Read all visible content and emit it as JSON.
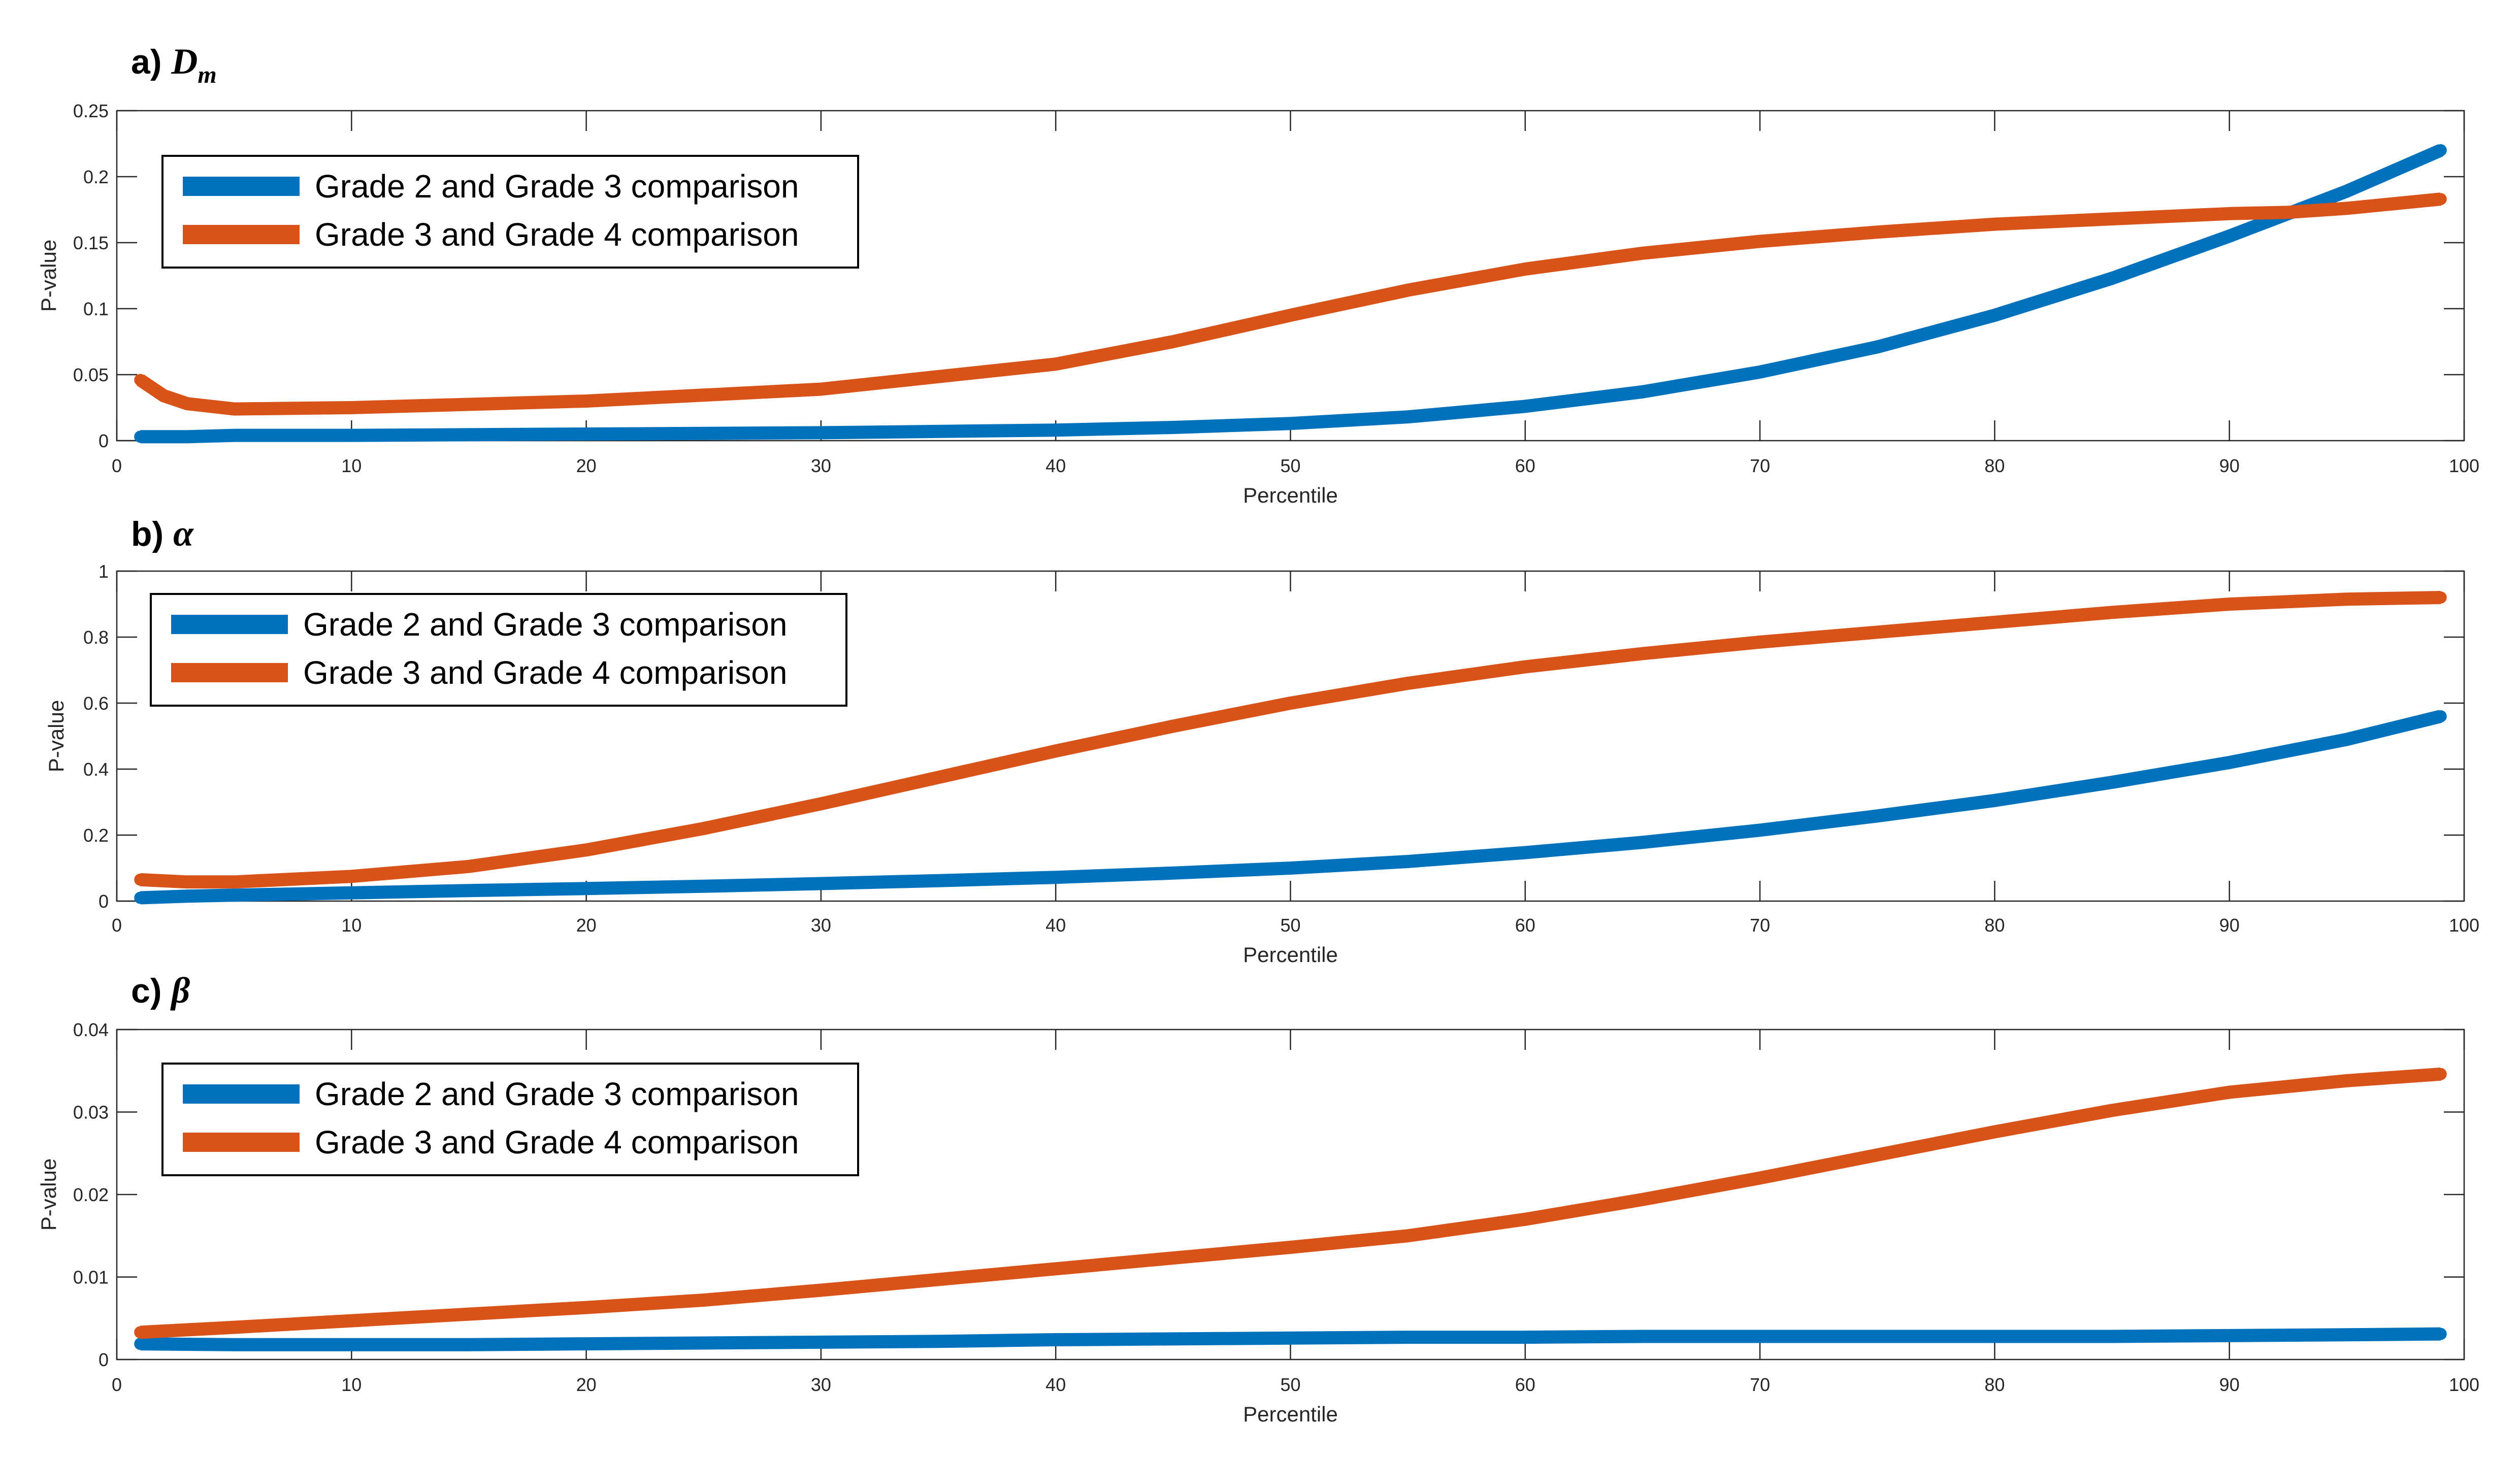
{
  "chart_data": [
    {
      "type": "line",
      "panel_label": "a)",
      "panel_symbol": "D",
      "panel_symbol_subscript": "m",
      "xlabel": "Percentile",
      "ylabel": "P-value",
      "xlim": [
        0,
        100
      ],
      "ylim": [
        0,
        0.25
      ],
      "xticks": [
        0,
        10,
        20,
        30,
        40,
        50,
        60,
        70,
        80,
        90,
        100
      ],
      "xtick_labels": [
        "0",
        "10",
        "20",
        "30",
        "40",
        "50",
        "60",
        "70",
        "80",
        "90",
        "100"
      ],
      "yticks": [
        0,
        0.05,
        0.1,
        0.15,
        0.2,
        0.25
      ],
      "ytick_labels": [
        "0",
        "0.05",
        "0.1",
        "0.15",
        "0.2",
        "0.25"
      ],
      "legend_position": "top-left",
      "x": [
        1,
        2,
        3,
        5,
        10,
        20,
        30,
        40,
        45,
        50,
        55,
        60,
        65,
        70,
        75,
        80,
        85,
        90,
        92.5,
        95,
        99
      ],
      "series": [
        {
          "name": "Grade 2 and Grade 3 comparison",
          "color": "#0072BD",
          "values": [
            0.003,
            0.003,
            0.003,
            0.004,
            0.004,
            0.005,
            0.006,
            0.008,
            0.01,
            0.013,
            0.018,
            0.026,
            0.037,
            0.052,
            0.071,
            0.095,
            0.123,
            0.155,
            0.172,
            0.189,
            0.22
          ]
        },
        {
          "name": "Grade 3 and Grade 4 comparison",
          "color": "#D95319",
          "values": [
            0.046,
            0.034,
            0.028,
            0.024,
            0.025,
            0.03,
            0.039,
            0.058,
            0.075,
            0.095,
            0.114,
            0.13,
            0.142,
            0.151,
            0.158,
            0.164,
            0.168,
            0.172,
            0.173,
            0.176,
            0.183
          ]
        }
      ]
    },
    {
      "type": "line",
      "panel_label": "b)",
      "panel_symbol": "α",
      "xlabel": "Percentile",
      "ylabel": "P-value",
      "xlim": [
        0,
        100
      ],
      "ylim": [
        0,
        1
      ],
      "xticks": [
        0,
        10,
        20,
        30,
        40,
        50,
        60,
        70,
        80,
        90,
        100
      ],
      "xtick_labels": [
        "0",
        "10",
        "20",
        "30",
        "40",
        "50",
        "60",
        "70",
        "80",
        "90",
        "100"
      ],
      "yticks": [
        0,
        0.2,
        0.4,
        0.6,
        0.8,
        1
      ],
      "ytick_labels": [
        "0",
        "0.2",
        "0.4",
        "0.6",
        "0.8",
        "1"
      ],
      "legend_position": "top-left",
      "x": [
        1,
        3,
        5,
        10,
        15,
        20,
        25,
        30,
        35,
        40,
        45,
        50,
        55,
        60,
        65,
        70,
        75,
        80,
        85,
        90,
        95,
        99
      ],
      "series": [
        {
          "name": "Grade 2 and Grade 3 comparison",
          "color": "#0072BD",
          "values": [
            0.01,
            0.015,
            0.018,
            0.025,
            0.032,
            0.038,
            0.045,
            0.053,
            0.062,
            0.072,
            0.085,
            0.1,
            0.12,
            0.147,
            0.178,
            0.215,
            0.258,
            0.305,
            0.36,
            0.42,
            0.49,
            0.56
          ]
        },
        {
          "name": "Grade 3 and Grade 4 comparison",
          "color": "#D95319",
          "values": [
            0.065,
            0.058,
            0.058,
            0.075,
            0.105,
            0.155,
            0.22,
            0.295,
            0.375,
            0.455,
            0.53,
            0.6,
            0.66,
            0.71,
            0.75,
            0.785,
            0.815,
            0.845,
            0.875,
            0.9,
            0.915,
            0.92
          ]
        }
      ]
    },
    {
      "type": "line",
      "panel_label": "c)",
      "panel_symbol": "β",
      "xlabel": "Percentile",
      "ylabel": "P-value",
      "xlim": [
        0,
        100
      ],
      "ylim": [
        0,
        0.04
      ],
      "xticks": [
        0,
        10,
        20,
        30,
        40,
        50,
        60,
        70,
        80,
        90,
        100
      ],
      "xtick_labels": [
        "0",
        "10",
        "20",
        "30",
        "40",
        "50",
        "60",
        "70",
        "80",
        "90",
        "100"
      ],
      "yticks": [
        0,
        0.01,
        0.02,
        0.03,
        0.04
      ],
      "ytick_labels": [
        "0",
        "0.01",
        "0.02",
        "0.03",
        "0.04"
      ],
      "legend_position": "top-left",
      "x": [
        1,
        5,
        10,
        15,
        20,
        25,
        30,
        35,
        40,
        45,
        50,
        55,
        60,
        65,
        70,
        75,
        80,
        85,
        90,
        95,
        99
      ],
      "series": [
        {
          "name": "Grade 2 and Grade 3 comparison",
          "color": "#0072BD",
          "values": [
            0.0019,
            0.0018,
            0.0018,
            0.0018,
            0.0019,
            0.002,
            0.0021,
            0.0022,
            0.0024,
            0.0025,
            0.0026,
            0.0027,
            0.0027,
            0.0028,
            0.0028,
            0.0028,
            0.0028,
            0.0028,
            0.0029,
            0.003,
            0.0031
          ]
        },
        {
          "name": "Grade 3 and Grade 4 comparison",
          "color": "#D95319",
          "values": [
            0.0033,
            0.0039,
            0.0047,
            0.0055,
            0.0063,
            0.0072,
            0.0084,
            0.0097,
            0.011,
            0.0123,
            0.0136,
            0.015,
            0.017,
            0.0194,
            0.022,
            0.0248,
            0.0276,
            0.0302,
            0.0324,
            0.0338,
            0.0346
          ]
        }
      ]
    }
  ]
}
